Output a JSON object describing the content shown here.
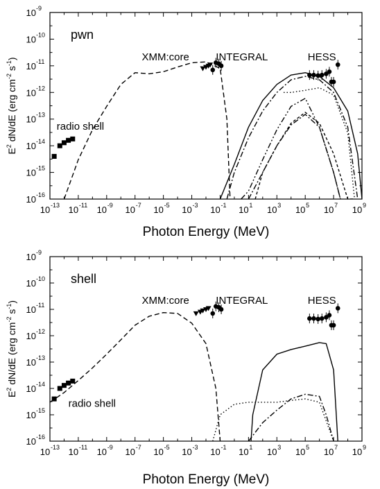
{
  "chart_data": [
    {
      "type": "line",
      "panel_label": "pwn",
      "xlabel": "Photon Energy (MeV)",
      "ylabel_html": "E^2 dN/dE (erg cm^-2 s^-1)",
      "xscale": "log",
      "yscale": "log",
      "xlim": [
        1e-13,
        1000000000.0
      ],
      "ylim": [
        1e-16,
        1e-09
      ],
      "legend": "none",
      "annotations": [
        {
          "text": "radio shell",
          "x": 3e-13,
          "y": 4e-14
        },
        {
          "text": "XMM:core",
          "x": 3e-07,
          "y": 1.6e-11
        },
        {
          "text": "INTEGRAL",
          "x": 0.05,
          "y": 1.6e-11
        },
        {
          "text": "HESS",
          "x": 150000.0,
          "y": 1.6e-11
        }
      ],
      "series": [
        {
          "style": "dashed",
          "x": [
            1e-12,
            1e-11,
            1e-10,
            1e-09,
            1e-08,
            1e-07,
            1e-06,
            1e-05,
            0.0001,
            0.001,
            0.01,
            0.1,
            0.3,
            0.5
          ],
          "y": [
            1e-16,
            3e-15,
            4e-14,
            3e-13,
            2e-12,
            5.5e-12,
            5e-12,
            6e-12,
            9e-12,
            1.3e-11,
            1.4e-11,
            8e-12,
            1e-13,
            1e-16
          ]
        },
        {
          "style": "solid",
          "x": [
            0.1,
            1,
            10,
            100,
            1000.0,
            10000.0,
            100000.0,
            1000000.0,
            10000000.0,
            100000000.0,
            500000000.0,
            1000000000.0
          ],
          "y": [
            1e-16,
            2e-15,
            5e-14,
            5e-13,
            2e-12,
            4.5e-12,
            5.5e-12,
            4e-12,
            1.5e-12,
            2e-13,
            5e-15,
            1e-16
          ]
        },
        {
          "style": "dotted",
          "x": [
            3000.0,
            10000.0,
            100000.0,
            1000000.0,
            10000000.0,
            100000000.0,
            300000000.0
          ],
          "y": [
            1e-12,
            1e-12,
            1.2e-12,
            1.5e-12,
            8e-13,
            3e-14,
            1e-16
          ]
        },
        {
          "style": "dash-dot",
          "x": [
            0.3,
            1,
            10,
            100,
            1000.0,
            10000.0,
            100000.0,
            1000000.0,
            10000000.0,
            100000000.0,
            500000000.0
          ],
          "y": [
            1e-16,
            1e-15,
            2e-14,
            2e-13,
            1e-12,
            3e-12,
            4e-12,
            3e-12,
            1e-12,
            5e-14,
            1e-16
          ]
        },
        {
          "style": "dash-dot-dot",
          "x": [
            3,
            10,
            100,
            1000.0,
            10000.0,
            100000.0,
            1000000.0,
            10000000.0,
            30000000.0
          ],
          "y": [
            1e-16,
            2e-16,
            3e-15,
            4e-14,
            3e-13,
            6e-13,
            5e-14,
            1e-15,
            1e-16
          ]
        },
        {
          "style": "dash-dot",
          "x": [
            10,
            100,
            1000.0,
            10000.0,
            100000.0,
            1000000.0,
            10000000.0,
            30000000.0
          ],
          "y": [
            1e-16,
            1e-15,
            1e-14,
            6e-14,
            1.5e-13,
            5e-14,
            1e-15,
            1e-16
          ]
        },
        {
          "style": "short-dash",
          "x": [
            30,
            100,
            1000.0,
            10000.0,
            100000.0,
            1000000.0,
            10000000.0,
            100000000.0,
            300000000.0
          ],
          "y": [
            1e-16,
            1e-15,
            1e-14,
            7e-14,
            1.8e-13,
            7e-14,
            5e-15,
            1e-16,
            1e-16
          ]
        }
      ],
      "points": [
        {
          "name": "radio shell",
          "marker": "square",
          "x": [
            2e-13,
            5e-13,
            1e-12,
            2e-12,
            4e-12
          ],
          "y": [
            4e-15,
            1e-14,
            1.3e-14,
            1.6e-14,
            1.8e-14
          ]
        },
        {
          "name": "XMM:core",
          "marker": "triangle-down",
          "x": [
            0.006,
            0.01,
            0.015,
            0.02
          ],
          "y": [
            8e-12,
            9e-12,
            1e-11,
            1.1e-11
          ]
        },
        {
          "name": "INTEGRAL",
          "marker": "circle",
          "x": [
            0.03,
            0.05,
            0.08,
            0.12
          ],
          "y": [
            7e-12,
            1.3e-11,
            1.2e-11,
            1e-11
          ]
        },
        {
          "name": "HESS",
          "marker": "circle",
          "x": [
            200000.0,
            400000.0,
            800000.0,
            1500000.0,
            3000000.0,
            5000000.0,
            7000000.0,
            10000000.0,
            20000000.0
          ],
          "y": [
            4.5e-12,
            4.5e-12,
            4.3e-12,
            4.5e-12,
            5e-12,
            6e-12,
            2.5e-12,
            2.5e-12,
            1.1e-11
          ]
        }
      ]
    },
    {
      "type": "line",
      "panel_label": "shell",
      "xlabel": "Photon Energy (MeV)",
      "ylabel_html": "E^2 dN/dE (erg cm^-2 s^-1)",
      "xscale": "log",
      "yscale": "log",
      "xlim": [
        1e-13,
        1000000000.0
      ],
      "ylim": [
        1e-16,
        1e-09
      ],
      "legend": "none",
      "annotations": [
        {
          "text": "radio shell",
          "x": 2e-12,
          "y": 2e-15
        },
        {
          "text": "XMM:core",
          "x": 3e-07,
          "y": 1.6e-11
        },
        {
          "text": "INTEGRAL",
          "x": 0.05,
          "y": 1.6e-11
        },
        {
          "text": "HESS",
          "x": 150000.0,
          "y": 1.6e-11
        }
      ],
      "series": [
        {
          "style": "dashed",
          "x": [
            1e-13,
            1e-12,
            1e-11,
            1e-10,
            1e-09,
            1e-08,
            1e-07,
            1e-06,
            1e-05,
            0.0001,
            0.001,
            0.01,
            0.05,
            0.1
          ],
          "y": [
            3e-15,
            7e-15,
            2e-14,
            6e-14,
            2e-13,
            7e-13,
            2.5e-12,
            5.5e-12,
            7.5e-12,
            7e-12,
            3e-12,
            5e-13,
            1e-14,
            1e-16
          ]
        },
        {
          "style": "solid",
          "x": [
            15,
            20,
            100,
            1000.0,
            10000.0,
            100000.0,
            1000000.0,
            3000000.0,
            10000000.0,
            20000000.0
          ],
          "y": [
            1e-16,
            1e-15,
            5e-14,
            2e-13,
            3e-13,
            4e-13,
            5.5e-13,
            5e-13,
            5e-14,
            1e-16
          ]
        },
        {
          "style": "dotted",
          "x": [
            0.03,
            0.1,
            1,
            10,
            100,
            1000.0,
            10000.0,
            100000.0,
            1000000.0,
            10000000.0
          ],
          "y": [
            1e-16,
            1e-15,
            2.5e-15,
            3e-15,
            3e-15,
            3e-15,
            3.5e-15,
            4e-15,
            3e-15,
            1e-16
          ]
        },
        {
          "style": "dash-dot",
          "x": [
            10,
            100,
            1000.0,
            10000.0,
            100000.0,
            1000000.0,
            3000000.0,
            10000000.0
          ],
          "y": [
            1e-16,
            5e-16,
            1.5e-15,
            4e-15,
            6e-15,
            5e-15,
            1e-15,
            1e-16
          ]
        }
      ],
      "points": [
        {
          "name": "radio shell",
          "marker": "square",
          "x": [
            2e-13,
            5e-13,
            1e-12,
            2e-12,
            4e-12
          ],
          "y": [
            4e-15,
            1e-14,
            1.3e-14,
            1.6e-14,
            1.9e-14
          ]
        },
        {
          "name": "XMM:core",
          "marker": "triangle-down",
          "x": [
            0.002,
            0.004,
            0.006,
            0.01,
            0.015
          ],
          "y": [
            7e-12,
            8e-12,
            9e-12,
            1e-11,
            1.1e-11
          ]
        },
        {
          "name": "INTEGRAL",
          "marker": "circle",
          "x": [
            0.03,
            0.05,
            0.08,
            0.12
          ],
          "y": [
            7e-12,
            1.3e-11,
            1.2e-11,
            1e-11
          ]
        },
        {
          "name": "HESS",
          "marker": "circle",
          "x": [
            200000.0,
            400000.0,
            800000.0,
            1500000.0,
            3000000.0,
            5000000.0,
            7000000.0,
            10000000.0,
            20000000.0
          ],
          "y": [
            4.5e-12,
            4.5e-12,
            4.3e-12,
            4.5e-12,
            5e-12,
            6e-12,
            2.5e-12,
            2.5e-12,
            1.1e-11
          ]
        }
      ]
    }
  ],
  "axis_text": {
    "x_title": "Photon Energy (MeV)",
    "y_title_main": "E",
    "y_title_exp1": "2",
    "y_title_mid": " dN/dE (erg cm",
    "y_title_exp2": "-2",
    "y_title_s": " s",
    "y_title_exp3": "-1",
    "y_title_end": ")",
    "x_tick_base": "10",
    "y_tick_base": "10"
  }
}
